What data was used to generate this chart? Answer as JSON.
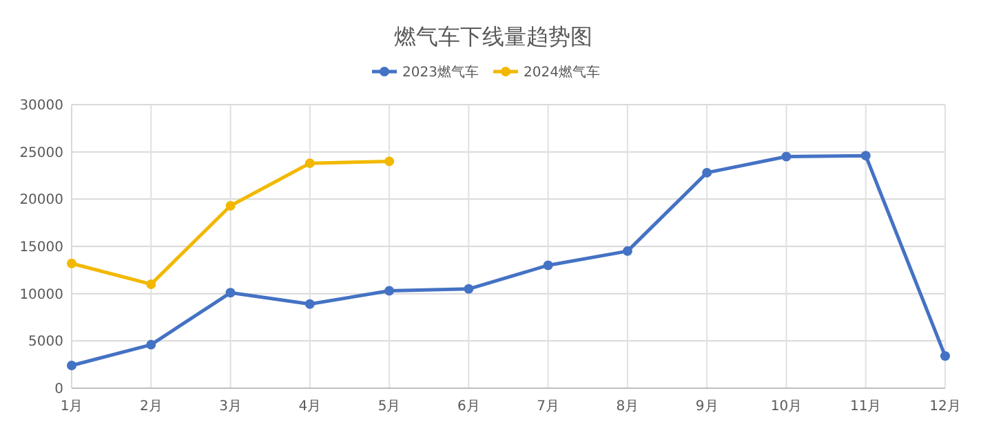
{
  "chart_data": {
    "type": "line",
    "title": "燃气车下线量趋势图",
    "categories": [
      "1月",
      "2月",
      "3月",
      "4月",
      "5月",
      "6月",
      "7月",
      "8月",
      "9月",
      "10月",
      "11月",
      "12月"
    ],
    "series": [
      {
        "name": "2023燃气车",
        "color": "#4472c4",
        "values": [
          2400,
          4600,
          10100,
          8900,
          10300,
          10500,
          13000,
          14500,
          22800,
          24500,
          24600,
          3400
        ]
      },
      {
        "name": "2024燃气车",
        "color": "#f2b800",
        "values": [
          13200,
          11000,
          19300,
          23800,
          24000,
          null,
          null,
          null,
          null,
          null,
          null,
          null
        ]
      }
    ],
    "ylim": [
      0,
      30000
    ],
    "yticks": [
      0,
      5000,
      10000,
      15000,
      20000,
      25000,
      30000
    ],
    "grid": true,
    "legend": "top",
    "marker": "circle",
    "line_style": "solid"
  }
}
